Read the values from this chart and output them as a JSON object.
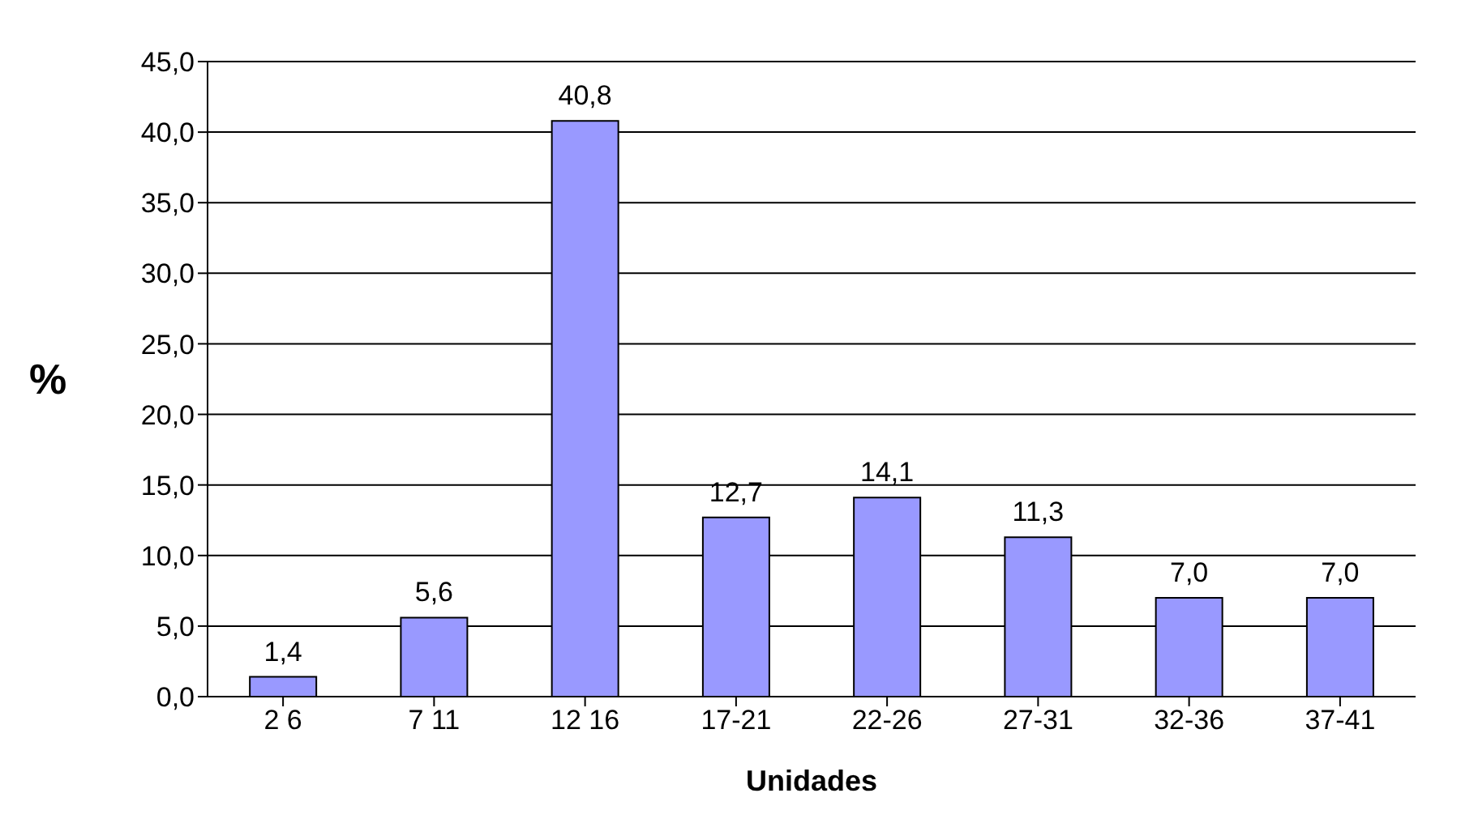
{
  "chart_data": {
    "type": "bar",
    "xlabel": "Unidades",
    "ylabel": "%",
    "categories": [
      "2 6",
      "7 11",
      "12 16",
      "17-21",
      "22-26",
      "27-31",
      "32-36",
      "37-41"
    ],
    "values": [
      1.4,
      5.6,
      40.8,
      12.7,
      14.1,
      11.3,
      7.0,
      7.0
    ],
    "value_labels": [
      "1,4",
      "5,6",
      "40,8",
      "12,7",
      "14,1",
      "11,3",
      "7,0",
      "7,0"
    ],
    "color": "#9999ff",
    "ylim": [
      0,
      45
    ],
    "yticks": [
      {
        "value": 0,
        "label": "0,0"
      },
      {
        "value": 5,
        "label": "5,0"
      },
      {
        "value": 10,
        "label": "10,0"
      },
      {
        "value": 15,
        "label": "15,0"
      },
      {
        "value": 20,
        "label": "20,0"
      },
      {
        "value": 25,
        "label": "25,0"
      },
      {
        "value": 30,
        "label": "30,0"
      },
      {
        "value": 35,
        "label": "35,0"
      },
      {
        "value": 40,
        "label": "40,0"
      },
      {
        "value": 45,
        "label": "45,0"
      }
    ],
    "grid": "y",
    "legend": false
  }
}
